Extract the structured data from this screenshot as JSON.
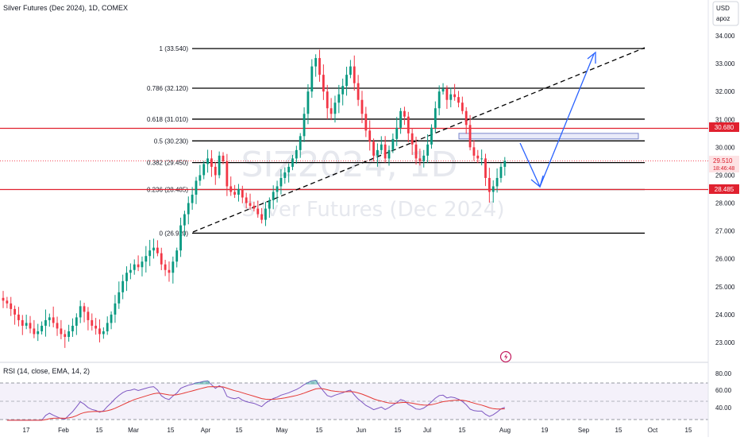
{
  "header": {
    "title": "Silver Futures (Dec 2024), 1D, COMEX",
    "currency": "USD",
    "mode": "apoz"
  },
  "watermark": {
    "symbol": "SIZ2024, 1D",
    "name": "Silver Futures (Dec 2024)"
  },
  "rsi": {
    "label": "RSI (14, close, EMA, 14, 2)",
    "ticks": [
      "80.00",
      "60.00",
      "40.00"
    ]
  },
  "price_ticks": [
    "34.000",
    "33.000",
    "32.000",
    "31.000",
    "30.000",
    "29.000",
    "28.000",
    "27.000",
    "26.000",
    "25.000",
    "24.000",
    "23.000"
  ],
  "price_badges": {
    "upper": "30.680",
    "current": "29.510",
    "countdown": "18:46:48",
    "lower": "28.485"
  },
  "colors": {
    "up": "#089981",
    "down": "#f23645",
    "fib": "#000000",
    "level": "#e0212f",
    "arrow": "#2962ff",
    "rsi_line": "#7e57c2",
    "rsi_ema": "#e53935"
  },
  "chart_data": {
    "type": "candlestick",
    "x_ticks": [
      "17",
      "Feb",
      "15",
      "Mar",
      "15",
      "Apr",
      "15",
      "May",
      "15",
      "Jun",
      "15",
      "Jul",
      "15",
      "Aug",
      "19",
      "Sep",
      "15",
      "Oct",
      "15"
    ],
    "y_range": [
      22.5,
      34.4
    ],
    "fib_levels": [
      {
        "label": "1 (33.540)",
        "value": 33.54
      },
      {
        "label": "0.786 (32.120)",
        "value": 32.12
      },
      {
        "label": "0.618 (31.010)",
        "value": 31.01
      },
      {
        "label": "0.5 (30.230)",
        "value": 30.23
      },
      {
        "label": "0.382 (29.450)",
        "value": 29.45
      },
      {
        "label": "0.236 (28.485)",
        "value": 28.485
      },
      {
        "label": "0 (26.920)",
        "value": 26.92
      }
    ],
    "horizontal_levels": [
      30.68,
      28.485
    ],
    "resistance_zone": [
      30.3,
      30.5
    ],
    "closes": [
      24.5,
      24.4,
      24.2,
      24.0,
      23.8,
      23.6,
      23.7,
      23.5,
      23.3,
      23.4,
      23.6,
      23.8,
      23.9,
      23.7,
      23.5,
      23.3,
      23.2,
      23.4,
      23.6,
      23.9,
      24.3,
      24.1,
      23.8,
      23.6,
      23.5,
      23.3,
      23.4,
      23.7,
      24.0,
      24.4,
      24.8,
      25.2,
      25.5,
      25.6,
      25.8,
      25.7,
      25.9,
      26.1,
      26.3,
      26.4,
      26.2,
      25.8,
      25.6,
      25.5,
      25.9,
      26.3,
      27.2,
      27.6,
      28.0,
      28.3,
      28.8,
      29.0,
      29.4,
      29.6,
      29.3,
      29.0,
      29.7,
      29.5,
      28.6,
      28.4,
      28.3,
      28.5,
      28.2,
      28.0,
      27.9,
      27.8,
      27.6,
      27.4,
      27.8,
      28.1,
      28.4,
      28.6,
      28.9,
      29.1,
      29.3,
      29.6,
      29.9,
      30.4,
      31.2,
      32.0,
      32.9,
      33.2,
      32.6,
      32.0,
      31.4,
      31.2,
      31.6,
      31.9,
      32.2,
      32.6,
      32.9,
      32.3,
      31.7,
      31.2,
      30.6,
      30.2,
      29.7,
      29.9,
      30.1,
      29.6,
      29.9,
      30.3,
      30.7,
      31.3,
      31.1,
      30.5,
      30.1,
      29.6,
      29.5,
      29.7,
      30.1,
      30.7,
      31.4,
      32.0,
      32.1,
      31.7,
      31.9,
      31.8,
      31.6,
      31.3,
      30.8,
      30.0,
      29.7,
      29.6,
      29.6,
      28.9,
      28.4,
      28.6,
      28.9,
      29.3,
      29.51
    ],
    "rsi_range": [
      30,
      90
    ]
  }
}
